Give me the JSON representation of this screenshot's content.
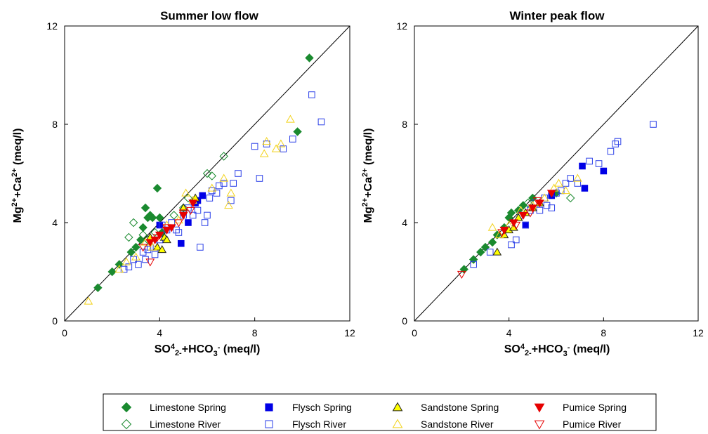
{
  "chart_data": [
    {
      "type": "scatter",
      "title": "Summer low flow",
      "xlabel": "SO42-+HCO3- (meq/l)",
      "ylabel": "Mg2++Ca2+ (meq/l)",
      "xlim": [
        0,
        12
      ],
      "ylim": [
        0,
        12
      ],
      "xticks": [
        "0",
        "4",
        "8",
        "12"
      ],
      "yticks": [
        "0",
        "4",
        "8",
        "12"
      ],
      "reference_line": "1:1",
      "series": [
        {
          "name": "Limestone Spring",
          "points": [
            [
              1.4,
              1.35
            ],
            [
              2.0,
              2.0
            ],
            [
              2.3,
              2.3
            ],
            [
              2.8,
              2.8
            ],
            [
              3.0,
              3.0
            ],
            [
              3.2,
              3.3
            ],
            [
              3.3,
              3.8
            ],
            [
              3.4,
              4.6
            ],
            [
              3.5,
              4.2
            ],
            [
              3.6,
              4.3
            ],
            [
              3.7,
              4.2
            ],
            [
              3.9,
              5.4
            ],
            [
              4.0,
              4.2
            ],
            [
              4.1,
              3.6
            ],
            [
              9.8,
              7.7
            ],
            [
              10.3,
              10.7
            ]
          ]
        },
        {
          "name": "Limestone River",
          "points": [
            [
              2.7,
              3.4
            ],
            [
              2.9,
              4.0
            ],
            [
              3.3,
              3.5
            ],
            [
              3.5,
              3.3
            ],
            [
              3.8,
              3.6
            ],
            [
              4.6,
              4.3
            ],
            [
              5.0,
              4.6
            ],
            [
              5.2,
              5.0
            ],
            [
              6.0,
              6.0
            ],
            [
              6.2,
              5.9
            ],
            [
              6.7,
              6.7
            ]
          ]
        },
        {
          "name": "Flysch Spring",
          "points": [
            [
              4.0,
              3.9
            ],
            [
              4.9,
              3.15
            ],
            [
              5.2,
              4.0
            ],
            [
              5.5,
              4.8
            ],
            [
              5.6,
              4.9
            ],
            [
              5.8,
              5.1
            ]
          ]
        },
        {
          "name": "Flysch River",
          "points": [
            [
              2.5,
              2.1
            ],
            [
              2.7,
              2.2
            ],
            [
              2.9,
              2.5
            ],
            [
              3.1,
              2.3
            ],
            [
              3.3,
              2.8
            ],
            [
              3.4,
              2.5
            ],
            [
              3.5,
              2.9
            ],
            [
              3.6,
              3.0
            ],
            [
              3.8,
              2.7
            ],
            [
              4.0,
              3.3
            ],
            [
              4.1,
              3.9
            ],
            [
              4.3,
              3.7
            ],
            [
              4.5,
              4.0
            ],
            [
              4.7,
              3.7
            ],
            [
              4.8,
              3.6
            ],
            [
              5.0,
              4.3
            ],
            [
              5.2,
              4.6
            ],
            [
              5.4,
              4.3
            ],
            [
              5.6,
              4.5
            ],
            [
              5.7,
              3.0
            ],
            [
              5.9,
              4.0
            ],
            [
              6.0,
              4.3
            ],
            [
              6.1,
              5.0
            ],
            [
              6.2,
              5.3
            ],
            [
              6.4,
              5.2
            ],
            [
              6.5,
              5.5
            ],
            [
              6.7,
              5.6
            ],
            [
              7.0,
              4.9
            ],
            [
              7.1,
              5.6
            ],
            [
              7.3,
              6.0
            ],
            [
              8.0,
              7.1
            ],
            [
              8.2,
              5.8
            ],
            [
              8.5,
              7.2
            ],
            [
              9.2,
              7.0
            ],
            [
              9.6,
              7.4
            ],
            [
              10.4,
              9.2
            ],
            [
              10.8,
              8.1
            ]
          ]
        },
        {
          "name": "Sandstone Spring",
          "points": [
            [
              3.6,
              3.4
            ],
            [
              3.9,
              3.0
            ],
            [
              4.1,
              2.9
            ],
            [
              4.2,
              3.4
            ],
            [
              4.3,
              3.3
            ],
            [
              5.0,
              4.6
            ],
            [
              5.5,
              5.0
            ]
          ]
        },
        {
          "name": "Sandstone River",
          "points": [
            [
              1.0,
              0.8
            ],
            [
              2.3,
              2.1
            ],
            [
              2.6,
              2.4
            ],
            [
              3.0,
              2.6
            ],
            [
              3.4,
              3.2
            ],
            [
              3.7,
              3.0
            ],
            [
              4.3,
              3.9
            ],
            [
              4.8,
              4.1
            ],
            [
              5.1,
              5.2
            ],
            [
              5.4,
              4.9
            ],
            [
              6.2,
              5.4
            ],
            [
              6.7,
              5.8
            ],
            [
              6.9,
              4.7
            ],
            [
              7.0,
              5.2
            ],
            [
              8.4,
              6.8
            ],
            [
              8.5,
              7.3
            ],
            [
              8.9,
              7.0
            ],
            [
              9.1,
              7.2
            ],
            [
              9.5,
              8.2
            ]
          ]
        },
        {
          "name": "Pumice Spring",
          "points": [
            [
              3.6,
              3.2
            ],
            [
              3.8,
              3.3
            ],
            [
              4.0,
              3.5
            ],
            [
              4.3,
              3.7
            ],
            [
              4.5,
              3.8
            ],
            [
              5.0,
              4.3
            ],
            [
              5.4,
              4.8
            ]
          ]
        },
        {
          "name": "Pumice River",
          "points": [
            [
              3.3,
              3.0
            ],
            [
              3.6,
              2.4
            ],
            [
              3.9,
              3.4
            ],
            [
              4.3,
              3.8
            ],
            [
              4.8,
              4.0
            ],
            [
              5.0,
              4.4
            ],
            [
              5.3,
              4.5
            ]
          ]
        }
      ]
    },
    {
      "type": "scatter",
      "title": "Winter peak flow",
      "xlabel": "SO42-+HCO3- (meq/l)",
      "ylabel": "Mg2++Ca2+ (meq/l)",
      "xlim": [
        0,
        12
      ],
      "ylim": [
        0,
        12
      ],
      "xticks": [
        "0",
        "4",
        "8",
        "12"
      ],
      "yticks": [
        "0",
        "4",
        "8",
        "12"
      ],
      "reference_line": "1:1",
      "series": [
        {
          "name": "Limestone Spring",
          "points": [
            [
              2.1,
              2.1
            ],
            [
              2.5,
              2.5
            ],
            [
              2.8,
              2.8
            ],
            [
              3.0,
              3.0
            ],
            [
              3.3,
              3.2
            ],
            [
              3.5,
              3.5
            ],
            [
              3.8,
              3.8
            ],
            [
              4.0,
              4.2
            ],
            [
              4.1,
              4.4
            ],
            [
              4.4,
              4.5
            ],
            [
              4.6,
              4.7
            ],
            [
              5.0,
              5.0
            ],
            [
              6.0,
              5.2
            ]
          ]
        },
        {
          "name": "Limestone River",
          "points": [
            [
              4.8,
              4.8
            ],
            [
              6.6,
              5.0
            ]
          ]
        },
        {
          "name": "Flysch Spring",
          "points": [
            [
              4.7,
              3.9
            ],
            [
              5.8,
              5.1
            ],
            [
              7.1,
              6.3
            ],
            [
              7.2,
              5.4
            ],
            [
              8.0,
              6.1
            ]
          ]
        },
        {
          "name": "Flysch River",
          "points": [
            [
              2.5,
              2.3
            ],
            [
              3.2,
              2.8
            ],
            [
              4.1,
              3.1
            ],
            [
              4.3,
              3.3
            ],
            [
              4.5,
              4.3
            ],
            [
              4.7,
              3.9
            ],
            [
              4.9,
              4.5
            ],
            [
              5.1,
              4.8
            ],
            [
              5.3,
              4.5
            ],
            [
              5.5,
              5.0
            ],
            [
              5.6,
              4.7
            ],
            [
              5.8,
              4.6
            ],
            [
              6.0,
              5.2
            ],
            [
              6.2,
              5.3
            ],
            [
              6.4,
              5.6
            ],
            [
              6.6,
              5.8
            ],
            [
              6.9,
              5.6
            ],
            [
              7.4,
              6.5
            ],
            [
              7.8,
              6.4
            ],
            [
              8.3,
              6.9
            ],
            [
              8.5,
              7.2
            ],
            [
              8.6,
              7.3
            ],
            [
              10.1,
              8.0
            ]
          ]
        },
        {
          "name": "Sandstone Spring",
          "points": [
            [
              3.5,
              2.8
            ],
            [
              3.8,
              3.5
            ],
            [
              4.0,
              3.7
            ],
            [
              4.2,
              3.8
            ],
            [
              4.4,
              4.2
            ],
            [
              4.7,
              4.4
            ],
            [
              5.0,
              4.6
            ],
            [
              5.3,
              4.8
            ]
          ]
        },
        {
          "name": "Sandstone River",
          "points": [
            [
              3.3,
              3.8
            ],
            [
              3.6,
              3.5
            ],
            [
              4.0,
              3.9
            ],
            [
              4.5,
              4.5
            ],
            [
              5.0,
              4.7
            ],
            [
              5.5,
              5.0
            ],
            [
              5.9,
              5.4
            ],
            [
              6.1,
              5.6
            ],
            [
              6.4,
              5.3
            ],
            [
              6.9,
              5.8
            ]
          ]
        },
        {
          "name": "Pumice Spring",
          "points": [
            [
              3.8,
              3.7
            ],
            [
              4.2,
              4.0
            ],
            [
              4.6,
              4.3
            ],
            [
              5.0,
              4.6
            ],
            [
              5.3,
              4.8
            ],
            [
              5.8,
              5.2
            ]
          ]
        },
        {
          "name": "Pumice River",
          "points": [
            [
              2.0,
              1.9
            ],
            [
              3.7,
              3.6
            ],
            [
              4.3,
              3.9
            ],
            [
              4.9,
              4.4
            ],
            [
              5.2,
              4.9
            ]
          ]
        }
      ]
    }
  ],
  "styles": [
    {
      "name": "Limestone Spring",
      "shape": "diamond",
      "fill": "#1a8a2f",
      "stroke": "#1a8a2f"
    },
    {
      "name": "Limestone River",
      "shape": "diamond",
      "fill": "none",
      "stroke": "#1a8a2f"
    },
    {
      "name": "Flysch Spring",
      "shape": "square",
      "fill": "#0000e6",
      "stroke": "#0000e6"
    },
    {
      "name": "Flysch River",
      "shape": "square",
      "fill": "none",
      "stroke": "#2a3fe8"
    },
    {
      "name": "Sandstone Spring",
      "shape": "triangle-up",
      "fill": "#ffff00",
      "stroke": "#222222"
    },
    {
      "name": "Sandstone River",
      "shape": "triangle-up",
      "fill": "none",
      "stroke": "#f2d21a"
    },
    {
      "name": "Pumice Spring",
      "shape": "triangle-down",
      "fill": "#e60000",
      "stroke": "#e60000"
    },
    {
      "name": "Pumice River",
      "shape": "triangle-down",
      "fill": "none",
      "stroke": "#e60000"
    }
  ],
  "legend": {
    "placement": "bottom",
    "items": [
      "Limestone Spring",
      "Flysch Spring",
      "Sandstone Spring",
      "Pumice Spring",
      "Limestone River",
      "Flysch River",
      "Sandstone River",
      "Pumice River"
    ]
  }
}
